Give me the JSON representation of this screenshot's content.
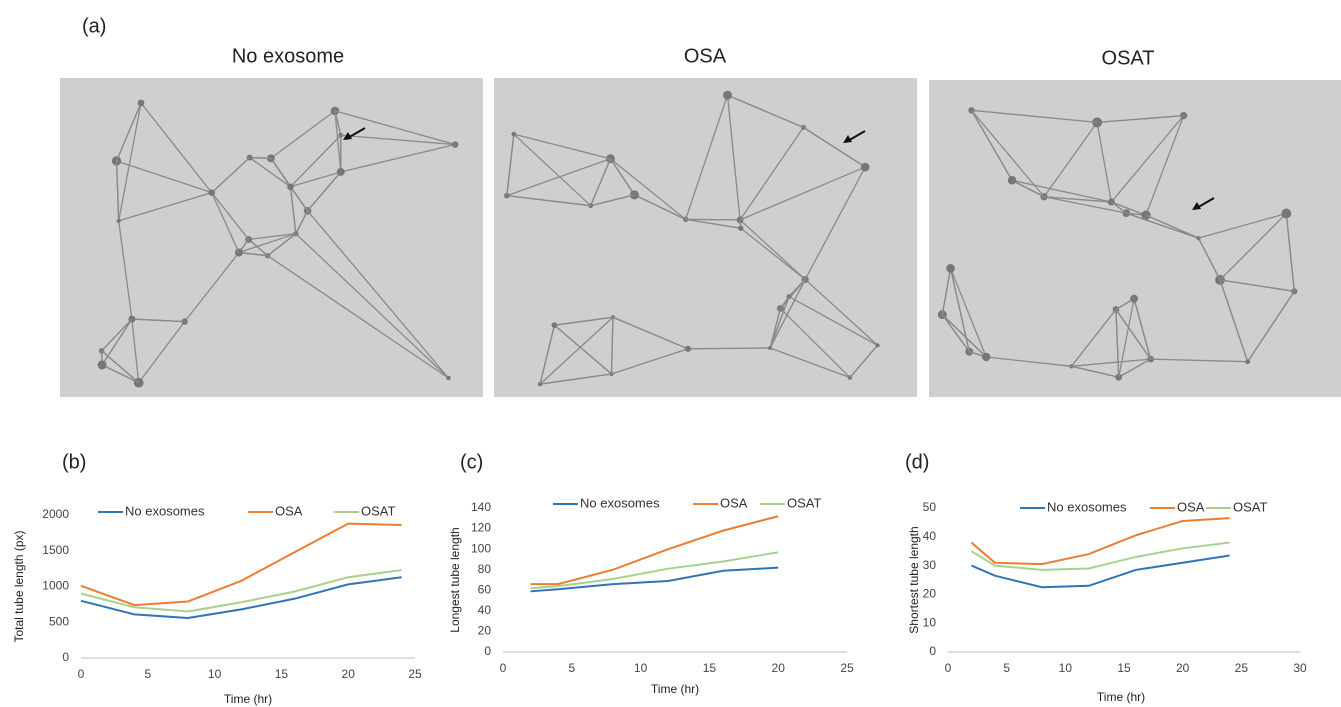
{
  "figure": {
    "panel_label": "(a)",
    "images": [
      {
        "title": "No exosome"
      },
      {
        "title": "OSA"
      },
      {
        "title": "OSAT"
      }
    ]
  },
  "chart_data": [
    {
      "type": "line",
      "panel_label": "(b)",
      "x_label": "Time (hr)",
      "y_label": "Total tube length  (px)",
      "x": [
        0,
        4,
        8,
        12,
        16,
        20,
        24
      ],
      "series": [
        {
          "name": "No exosomes",
          "color": "#2e75b6",
          "values": [
            800,
            610,
            560,
            680,
            830,
            1030,
            1130
          ]
        },
        {
          "name": "OSA",
          "color": "#ed7d31",
          "values": [
            1010,
            740,
            790,
            1080,
            1480,
            1880,
            1860
          ]
        },
        {
          "name": "OSAT",
          "color": "#a9d18e",
          "values": [
            900,
            710,
            650,
            780,
            930,
            1130,
            1230
          ]
        }
      ],
      "xlim": [
        0,
        25
      ],
      "xticks": [
        0,
        5,
        10,
        15,
        20,
        25
      ],
      "ylim": [
        0,
        2000
      ],
      "yticks": [
        0,
        500,
        1000,
        1500,
        2000
      ],
      "grid": false
    },
    {
      "type": "line",
      "panel_label": "(c)",
      "x_label": "Time (hr)",
      "y_label": "Longest tube length",
      "x": [
        2,
        4,
        8,
        12,
        16,
        20
      ],
      "series": [
        {
          "name": "No exosomes",
          "color": "#2e75b6",
          "values": [
            59,
            61,
            66,
            69,
            79,
            82
          ]
        },
        {
          "name": "OSA",
          "color": "#ed7d31",
          "values": [
            66,
            66,
            80,
            100,
            118,
            132
          ]
        },
        {
          "name": "OSAT",
          "color": "#a9d18e",
          "values": [
            62,
            64,
            71,
            81,
            88,
            97
          ]
        }
      ],
      "xlim": [
        0,
        25
      ],
      "xticks": [
        0,
        5,
        10,
        15,
        20,
        25
      ],
      "ylim": [
        0,
        140
      ],
      "yticks": [
        0,
        20,
        40,
        60,
        80,
        100,
        120,
        140
      ],
      "grid": false
    },
    {
      "type": "line",
      "panel_label": "(d)",
      "x_label": "Time (hr)",
      "y_label": "Shortest tube length",
      "x": [
        2,
        4,
        8,
        12,
        16,
        20,
        24
      ],
      "series": [
        {
          "name": "No exosomes",
          "color": "#2e75b6",
          "values": [
            30,
            26.5,
            22.5,
            23,
            28.5,
            31,
            33.5
          ]
        },
        {
          "name": "OSA",
          "color": "#ed7d31",
          "values": [
            38,
            31,
            30.5,
            34,
            40.5,
            45.5,
            46.5
          ]
        },
        {
          "name": "OSAT",
          "color": "#a9d18e",
          "values": [
            35,
            30,
            28.5,
            29,
            33,
            36,
            38
          ]
        }
      ],
      "xlim": [
        0,
        30
      ],
      "xticks": [
        0,
        5,
        10,
        15,
        20,
        25,
        30
      ],
      "ylim": [
        0,
        50
      ],
      "yticks": [
        0,
        10,
        20,
        30,
        40,
        50
      ],
      "grid": false
    }
  ]
}
